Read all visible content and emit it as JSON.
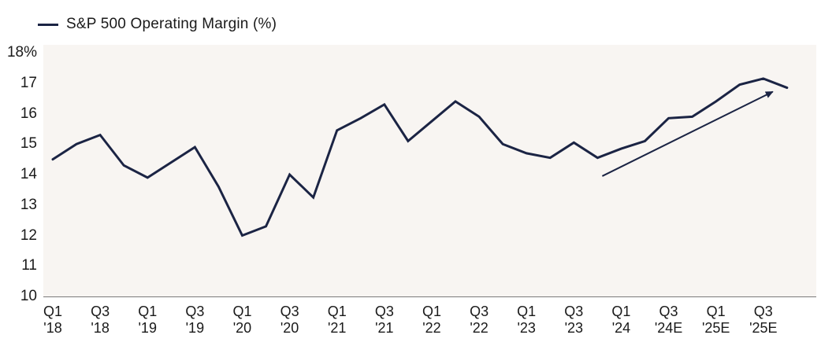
{
  "legend": {
    "label": "S&P 500 Operating Margin (%)"
  },
  "colors": {
    "line": "#1b2444",
    "arrow": "#1b2444",
    "plot_bg": "#f8f5f2",
    "axis": "#7a7a7a",
    "text": "#1a1a1a"
  },
  "y_axis": {
    "tick_labels": [
      "18%",
      "17",
      "16",
      "15",
      "14",
      "13",
      "12",
      "11",
      "10"
    ],
    "tick_values": [
      18,
      17,
      16,
      15,
      14,
      13,
      12,
      11,
      10
    ]
  },
  "x_axis": {
    "tick_labels": [
      [
        "Q1",
        "'18"
      ],
      [
        "Q3",
        "'18"
      ],
      [
        "Q1",
        "'19"
      ],
      [
        "Q3",
        "'19"
      ],
      [
        "Q1",
        "'20"
      ],
      [
        "Q3",
        "'20"
      ],
      [
        "Q1",
        "'21"
      ],
      [
        "Q3",
        "'21"
      ],
      [
        "Q1",
        "'22"
      ],
      [
        "Q3",
        "'22"
      ],
      [
        "Q1",
        "'23"
      ],
      [
        "Q3",
        "'23"
      ],
      [
        "Q1",
        "'24"
      ],
      [
        "Q3",
        "'24E"
      ],
      [
        "Q1",
        "'25E"
      ],
      [
        "Q3",
        "'25E"
      ]
    ]
  },
  "chart_data": {
    "type": "line",
    "title": "S&P 500 Operating Margin (%)",
    "legend_position": "top-left",
    "grid": false,
    "ylim": [
      10,
      18
    ],
    "x": [
      "Q1 '18",
      "Q2 '18",
      "Q3 '18",
      "Q4 '18",
      "Q1 '19",
      "Q2 '19",
      "Q3 '19",
      "Q4 '19",
      "Q1 '20",
      "Q2 '20",
      "Q3 '20",
      "Q4 '20",
      "Q1 '21",
      "Q2 '21",
      "Q3 '21",
      "Q4 '21",
      "Q1 '22",
      "Q2 '22",
      "Q3 '22",
      "Q4 '22",
      "Q1 '23",
      "Q2 '23",
      "Q3 '23",
      "Q4 '23",
      "Q1 '24",
      "Q2 '24",
      "Q3 '24E",
      "Q4 '24E",
      "Q1 '25E",
      "Q2 '25E",
      "Q3 '25E",
      "Q4 '25E"
    ],
    "series": [
      {
        "name": "S&P 500 Operating Margin (%)",
        "values": [
          14.5,
          15.0,
          15.3,
          14.3,
          13.9,
          14.4,
          14.9,
          13.6,
          12.0,
          12.3,
          14.0,
          13.25,
          15.45,
          15.85,
          16.3,
          15.1,
          15.75,
          16.4,
          15.9,
          15.0,
          14.7,
          14.55,
          15.05,
          14.55,
          14.85,
          15.1,
          15.85,
          15.9,
          16.4,
          16.95,
          17.15,
          16.85
        ]
      }
    ],
    "annotations": [
      {
        "type": "trend-arrow",
        "description": "straight upward arrow highlighting the rise in estimated margins",
        "x1_quarter_index": 23.2,
        "y1_percent": 13.95,
        "x2_quarter_index": 30.4,
        "y2_percent": 16.72
      }
    ]
  }
}
